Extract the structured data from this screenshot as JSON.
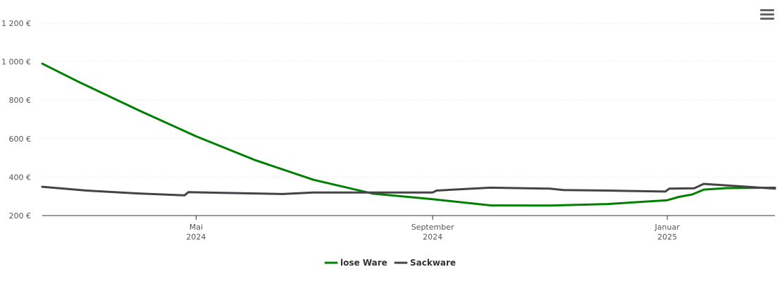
{
  "chart_data": {
    "type": "line",
    "y_ticks": [
      "200 €",
      "400 €",
      "600 €",
      "800 €",
      "1 000 €",
      "1 200 €"
    ],
    "y_values": [
      200,
      400,
      600,
      800,
      1000,
      1200
    ],
    "ylim": [
      200,
      1200
    ],
    "xlim": [
      "2024-02-11",
      "2025-02-26"
    ],
    "x_ticks": [
      {
        "date": "2024-05-01",
        "month": "Mai",
        "year": "2024"
      },
      {
        "date": "2024-09-01",
        "month": "September",
        "year": "2024"
      },
      {
        "date": "2025-01-01",
        "month": "Januar",
        "year": "2025"
      }
    ],
    "grid": true,
    "legend_position": "bottom-center",
    "series": [
      {
        "name": "lose Ware",
        "color": "#008000",
        "points": [
          [
            "2024-02-11",
            990
          ],
          [
            "2024-03-01",
            895
          ],
          [
            "2024-04-01",
            748
          ],
          [
            "2024-05-01",
            612
          ],
          [
            "2024-06-01",
            487
          ],
          [
            "2024-07-01",
            386
          ],
          [
            "2024-08-01",
            314
          ],
          [
            "2024-09-01",
            285
          ],
          [
            "2024-10-01",
            253
          ],
          [
            "2024-11-01",
            252
          ],
          [
            "2024-12-01",
            260
          ],
          [
            "2025-01-01",
            280
          ],
          [
            "2025-01-07",
            297
          ],
          [
            "2025-01-14",
            310
          ],
          [
            "2025-01-20",
            335
          ],
          [
            "2025-02-01",
            343
          ],
          [
            "2025-02-26",
            345
          ]
        ]
      },
      {
        "name": "Sackware",
        "color": "#434348",
        "points": [
          [
            "2024-02-11",
            350
          ],
          [
            "2024-03-05",
            330
          ],
          [
            "2024-04-01",
            315
          ],
          [
            "2024-04-25",
            305
          ],
          [
            "2024-04-27",
            322
          ],
          [
            "2024-05-15",
            318
          ],
          [
            "2024-06-15",
            312
          ],
          [
            "2024-07-01",
            320
          ],
          [
            "2024-08-01",
            320
          ],
          [
            "2024-09-01",
            320
          ],
          [
            "2024-09-03",
            330
          ],
          [
            "2024-10-01",
            345
          ],
          [
            "2024-11-01",
            340
          ],
          [
            "2024-11-08",
            333
          ],
          [
            "2024-12-01",
            330
          ],
          [
            "2024-12-31",
            325
          ],
          [
            "2025-01-02",
            340
          ],
          [
            "2025-01-15",
            342
          ],
          [
            "2025-01-20",
            365
          ],
          [
            "2025-02-26",
            340
          ]
        ]
      }
    ]
  },
  "menu_icon": "hamburger-menu-icon"
}
